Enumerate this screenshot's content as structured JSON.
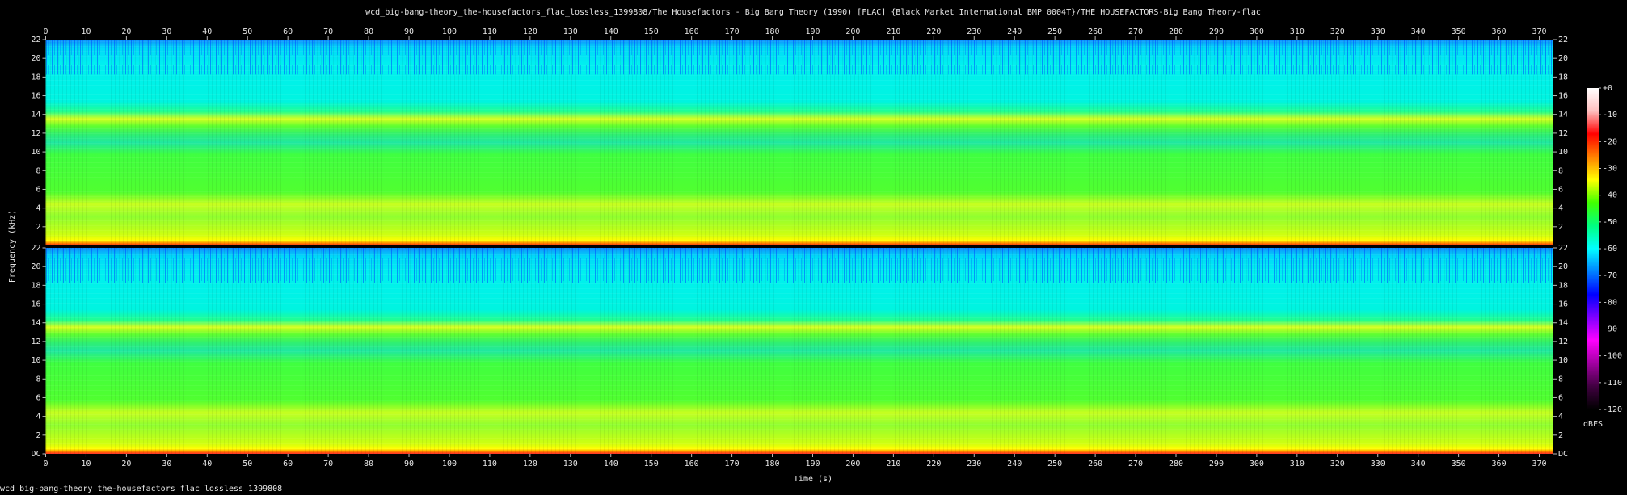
{
  "chart_data": {
    "type": "spectrogram",
    "title": "wcd_big-bang-theory_the-housefactors_flac_lossless_1399808/The Housefactors - Big Bang Theory (1990) [FLAC] {Black Market International BMP 0004T}/THE HOUSEFACTORS-Big Bang Theory-flac",
    "x_label": "Time (s)",
    "y_label": "Frequency (kHz)",
    "xlim": [
      0,
      373.5
    ],
    "xticks": [
      0,
      10,
      20,
      30,
      40,
      50,
      60,
      70,
      80,
      90,
      100,
      110,
      120,
      130,
      140,
      150,
      160,
      170,
      180,
      190,
      200,
      210,
      220,
      230,
      240,
      250,
      260,
      270,
      280,
      290,
      300,
      310,
      320,
      330,
      340,
      350,
      360,
      370
    ],
    "channels": [
      {
        "ylim": [
          0,
          22
        ],
        "yticks": [
          2,
          4,
          6,
          8,
          10,
          12,
          14,
          16,
          18,
          20,
          22
        ]
      },
      {
        "ylim": [
          0,
          22
        ],
        "yticks": [
          {
            "value": 0,
            "label": "DC"
          },
          2,
          4,
          6,
          8,
          10,
          12,
          14,
          16,
          18,
          20,
          22
        ]
      }
    ],
    "colorbar": {
      "label": "dBFS",
      "lim": [
        -120,
        0
      ],
      "ticks": [
        {
          "value": 0,
          "label": "+0"
        },
        -10,
        -20,
        -30,
        -40,
        -50,
        -60,
        -70,
        -80,
        -90,
        -100,
        -110,
        -120
      ],
      "colors": [
        "#000000",
        "#400040",
        "#a000a0",
        "#ff00ff",
        "#8000ff",
        "#0000ff",
        "#0080ff",
        "#00ffff",
        "#00ff80",
        "#40ff00",
        "#ffff00",
        "#ff8000",
        "#ff0000",
        "#ffc0c0",
        "#ffffff"
      ]
    },
    "footer": "wcd_big-bang-theory_the-housefactors_flac_lossless_1399808"
  }
}
